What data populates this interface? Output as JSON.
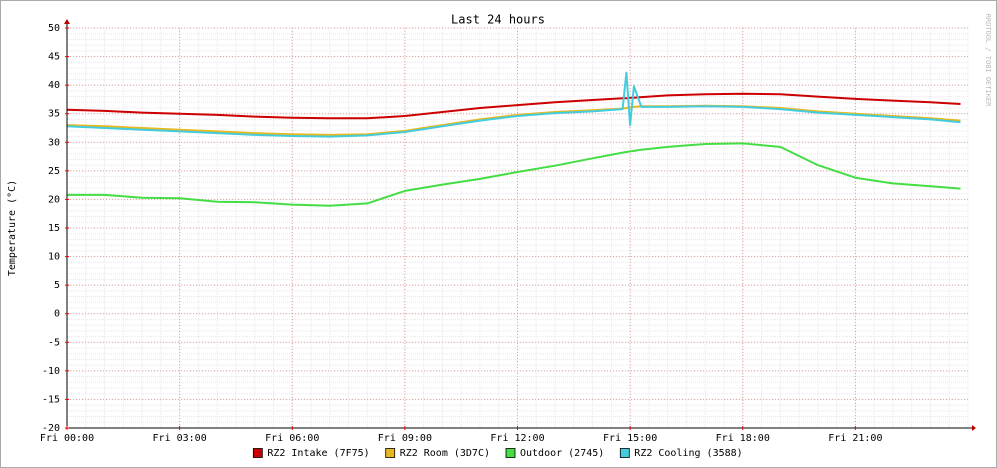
{
  "chart_data": {
    "type": "line",
    "title": "Last 24 hours",
    "y_label": "Temperature (°C)",
    "watermark": "RRDTOOL / TOBI OETIKER",
    "x": [
      0,
      1,
      2,
      3,
      4,
      5,
      6,
      7,
      8,
      9,
      10,
      11,
      12,
      13,
      14,
      14.8,
      14.9,
      15,
      15.1,
      15.3,
      16,
      17,
      18,
      19,
      20,
      21,
      22,
      23,
      23.8
    ],
    "xlim": [
      0,
      24
    ],
    "xticks": [
      {
        "value": 0,
        "label": "Fri 00:00"
      },
      {
        "value": 3,
        "label": "Fri 03:00"
      },
      {
        "value": 6,
        "label": "Fri 06:00"
      },
      {
        "value": 9,
        "label": "Fri 09:00"
      },
      {
        "value": 12,
        "label": "Fri 12:00"
      },
      {
        "value": 15,
        "label": "Fri 15:00"
      },
      {
        "value": 18,
        "label": "Fri 18:00"
      },
      {
        "value": 21,
        "label": "Fri 21:00"
      }
    ],
    "ylim": [
      -20,
      50
    ],
    "yticks": [
      -20,
      -15,
      -10,
      -5,
      0,
      5,
      10,
      15,
      20,
      25,
      30,
      35,
      40,
      45,
      50
    ],
    "grid": true,
    "series": [
      {
        "name": "RZ2 Intake (7F75)",
        "color": "#cc0000",
        "values": [
          35.7,
          35.5,
          35.2,
          35.0,
          34.8,
          34.5,
          34.3,
          34.2,
          34.2,
          34.6,
          35.3,
          36.0,
          36.5,
          37.0,
          37.4,
          37.7,
          37.7,
          37.8,
          37.8,
          37.9,
          38.2,
          38.4,
          38.5,
          38.4,
          38.0,
          37.6,
          37.3,
          37.0,
          36.7
        ]
      },
      {
        "name": "RZ2 Room (3D7C)",
        "color": "#e8b820",
        "values": [
          33.0,
          32.8,
          32.5,
          32.2,
          31.9,
          31.6,
          31.4,
          31.3,
          31.4,
          32.0,
          33.0,
          34.0,
          34.8,
          35.3,
          35.6,
          35.9,
          36.0,
          36.1,
          36.2,
          36.3,
          36.3,
          36.4,
          36.3,
          36.0,
          35.4,
          35.0,
          34.6,
          34.2,
          33.8
        ]
      },
      {
        "name": "Outdoor (2745)",
        "color": "#44dd44",
        "values": [
          20.8,
          20.8,
          20.3,
          20.2,
          19.6,
          19.5,
          19.1,
          18.9,
          19.3,
          21.5,
          22.6,
          23.6,
          24.8,
          25.9,
          27.2,
          28.2,
          28.3,
          28.4,
          28.5,
          28.7,
          29.2,
          29.7,
          29.8,
          29.2,
          26.0,
          23.8,
          22.8,
          22.3,
          21.9
        ]
      },
      {
        "name": "RZ2 Cooling (3588)",
        "color": "#44ccdd",
        "values": [
          32.8,
          32.5,
          32.2,
          31.9,
          31.6,
          31.3,
          31.1,
          31.0,
          31.2,
          31.8,
          32.8,
          33.8,
          34.6,
          35.1,
          35.4,
          35.8,
          42.2,
          33.0,
          39.8,
          36.2,
          36.2,
          36.3,
          36.2,
          35.8,
          35.2,
          34.8,
          34.4,
          34.0,
          33.5
        ]
      }
    ]
  }
}
